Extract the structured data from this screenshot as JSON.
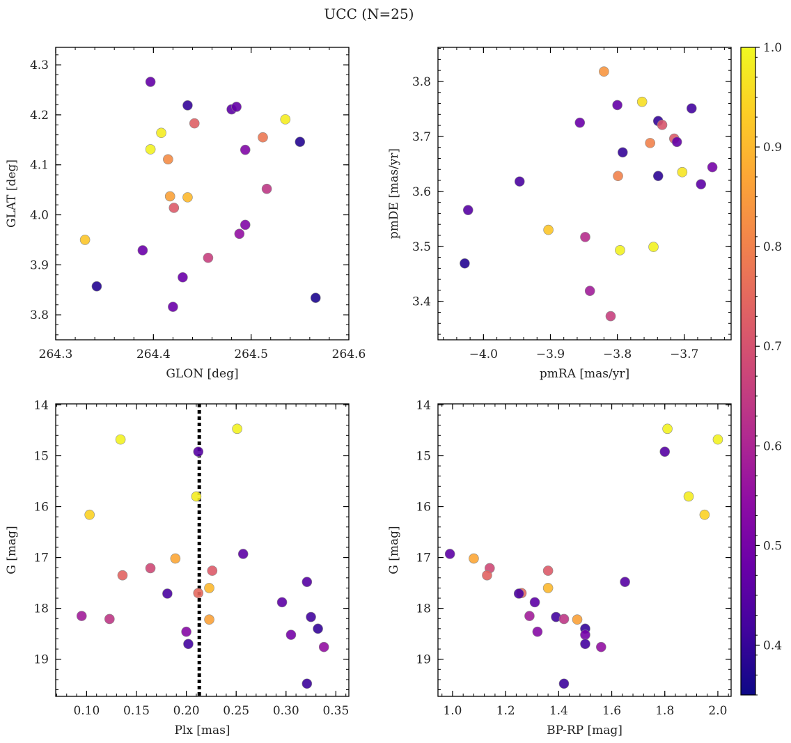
{
  "figure": {
    "title": "UCC (N=25)"
  },
  "colorbar": {
    "range": [
      0.35,
      1.0
    ],
    "ticks": [
      0.4,
      0.5,
      0.6,
      0.7,
      0.8,
      0.9,
      1.0
    ],
    "tick_labels": [
      "0.4",
      "0.5",
      "0.6",
      "0.7",
      "0.8",
      "0.9",
      "1.0"
    ],
    "colormap": "plasma"
  },
  "chart_data": [
    {
      "type": "scatter",
      "xlabel": "GLON [deg]",
      "ylabel": "GLAT [deg]",
      "xlim": [
        264.3,
        264.6
      ],
      "ylim": [
        3.75,
        4.335
      ],
      "xticks": [
        264.3,
        264.4,
        264.5,
        264.6
      ],
      "xtick_labels": [
        "264.3",
        "264.4",
        "264.5",
        "264.6"
      ],
      "yticks": [
        3.8,
        3.9,
        4.0,
        4.1,
        4.2,
        4.3
      ],
      "ytick_labels": [
        "3.8",
        "3.9",
        "4.0",
        "4.1",
        "4.2",
        "4.3"
      ],
      "points": [
        {
          "x": 264.397,
          "y": 4.266,
          "c": 0.47
        },
        {
          "x": 264.435,
          "y": 4.219,
          "c": 0.4
        },
        {
          "x": 264.48,
          "y": 4.211,
          "c": 0.46
        },
        {
          "x": 264.485,
          "y": 4.216,
          "c": 0.47
        },
        {
          "x": 264.535,
          "y": 4.191,
          "c": 0.98
        },
        {
          "x": 264.442,
          "y": 4.183,
          "c": 0.73
        },
        {
          "x": 264.408,
          "y": 4.164,
          "c": 0.98
        },
        {
          "x": 264.512,
          "y": 4.155,
          "c": 0.78
        },
        {
          "x": 264.55,
          "y": 4.146,
          "c": 0.38
        },
        {
          "x": 264.397,
          "y": 4.131,
          "c": 0.99
        },
        {
          "x": 264.494,
          "y": 4.13,
          "c": 0.52
        },
        {
          "x": 264.415,
          "y": 4.111,
          "c": 0.82
        },
        {
          "x": 264.516,
          "y": 4.052,
          "c": 0.64
        },
        {
          "x": 264.417,
          "y": 4.037,
          "c": 0.86
        },
        {
          "x": 264.435,
          "y": 4.035,
          "c": 0.9
        },
        {
          "x": 264.421,
          "y": 4.014,
          "c": 0.72
        },
        {
          "x": 264.494,
          "y": 3.98,
          "c": 0.52
        },
        {
          "x": 264.488,
          "y": 3.962,
          "c": 0.55
        },
        {
          "x": 264.33,
          "y": 3.95,
          "c": 0.92
        },
        {
          "x": 264.389,
          "y": 3.929,
          "c": 0.48
        },
        {
          "x": 264.456,
          "y": 3.914,
          "c": 0.66
        },
        {
          "x": 264.43,
          "y": 3.875,
          "c": 0.48
        },
        {
          "x": 264.342,
          "y": 3.857,
          "c": 0.38
        },
        {
          "x": 264.566,
          "y": 3.834,
          "c": 0.37
        },
        {
          "x": 264.42,
          "y": 3.816,
          "c": 0.48
        }
      ]
    },
    {
      "type": "scatter",
      "xlabel": "pmRA [mas/yr]",
      "ylabel": "pmDE [mas/yr]",
      "xlim": [
        -4.068,
        -3.63
      ],
      "ylim": [
        3.33,
        3.862
      ],
      "xticks": [
        -4.0,
        -3.9,
        -3.8,
        -3.7
      ],
      "xtick_labels": [
        "−4.0",
        "−3.9",
        "−3.8",
        "−3.7"
      ],
      "yticks": [
        3.4,
        3.5,
        3.6,
        3.7,
        3.8
      ],
      "ytick_labels": [
        "3.4",
        "3.5",
        "3.6",
        "3.7",
        "3.8"
      ],
      "points": [
        {
          "x": -3.82,
          "y": 3.818,
          "c": 0.84
        },
        {
          "x": -3.763,
          "y": 3.763,
          "c": 0.96
        },
        {
          "x": -3.8,
          "y": 3.757,
          "c": 0.47
        },
        {
          "x": -3.689,
          "y": 3.751,
          "c": 0.42
        },
        {
          "x": -3.739,
          "y": 3.728,
          "c": 0.4
        },
        {
          "x": -3.856,
          "y": 3.725,
          "c": 0.48
        },
        {
          "x": -3.733,
          "y": 3.721,
          "c": 0.71
        },
        {
          "x": -3.715,
          "y": 3.696,
          "c": 0.72
        },
        {
          "x": -3.751,
          "y": 3.688,
          "c": 0.8
        },
        {
          "x": -3.711,
          "y": 3.69,
          "c": 0.47
        },
        {
          "x": -3.792,
          "y": 3.671,
          "c": 0.4
        },
        {
          "x": -3.658,
          "y": 3.644,
          "c": 0.5
        },
        {
          "x": -3.703,
          "y": 3.635,
          "c": 0.97
        },
        {
          "x": -3.799,
          "y": 3.628,
          "c": 0.8
        },
        {
          "x": -3.739,
          "y": 3.628,
          "c": 0.39
        },
        {
          "x": -3.946,
          "y": 3.618,
          "c": 0.43
        },
        {
          "x": -3.675,
          "y": 3.613,
          "c": 0.46
        },
        {
          "x": -4.023,
          "y": 3.566,
          "c": 0.45
        },
        {
          "x": -3.903,
          "y": 3.53,
          "c": 0.92
        },
        {
          "x": -3.848,
          "y": 3.517,
          "c": 0.62
        },
        {
          "x": -3.746,
          "y": 3.499,
          "c": 0.99
        },
        {
          "x": -3.796,
          "y": 3.493,
          "c": 0.99
        },
        {
          "x": -4.028,
          "y": 3.469,
          "c": 0.38
        },
        {
          "x": -3.841,
          "y": 3.419,
          "c": 0.58
        },
        {
          "x": -3.81,
          "y": 3.373,
          "c": 0.66
        }
      ]
    },
    {
      "type": "scatter",
      "xlabel": "Plx [mas]",
      "ylabel": "G [mag]",
      "xlim": [
        0.069,
        0.363
      ],
      "ylim": [
        19.73,
        13.98
      ],
      "xticks": [
        0.1,
        0.15,
        0.2,
        0.25,
        0.3,
        0.35
      ],
      "xtick_labels": [
        "0.10",
        "0.15",
        "0.20",
        "0.25",
        "0.30",
        "0.35"
      ],
      "yticks": [
        14,
        15,
        16,
        17,
        18,
        19
      ],
      "ytick_labels": [
        "14",
        "15",
        "16",
        "17",
        "18",
        "19"
      ],
      "reference_line": {
        "x": 0.213,
        "style": "dotted"
      },
      "points": [
        {
          "x": 0.251,
          "y": 14.47,
          "c": 0.99
        },
        {
          "x": 0.134,
          "y": 14.68,
          "c": 0.99
        },
        {
          "x": 0.212,
          "y": 14.92,
          "c": 0.45
        },
        {
          "x": 0.21,
          "y": 15.8,
          "c": 0.98
        },
        {
          "x": 0.103,
          "y": 16.16,
          "c": 0.94
        },
        {
          "x": 0.257,
          "y": 16.93,
          "c": 0.46
        },
        {
          "x": 0.189,
          "y": 17.02,
          "c": 0.87
        },
        {
          "x": 0.164,
          "y": 17.21,
          "c": 0.68
        },
        {
          "x": 0.226,
          "y": 17.26,
          "c": 0.72
        },
        {
          "x": 0.136,
          "y": 17.35,
          "c": 0.74
        },
        {
          "x": 0.321,
          "y": 17.48,
          "c": 0.45
        },
        {
          "x": 0.223,
          "y": 17.6,
          "c": 0.9
        },
        {
          "x": 0.212,
          "y": 17.7,
          "c": 0.75
        },
        {
          "x": 0.181,
          "y": 17.71,
          "c": 0.43
        },
        {
          "x": 0.296,
          "y": 17.88,
          "c": 0.46
        },
        {
          "x": 0.095,
          "y": 18.15,
          "c": 0.58
        },
        {
          "x": 0.325,
          "y": 18.17,
          "c": 0.42
        },
        {
          "x": 0.123,
          "y": 18.21,
          "c": 0.64
        },
        {
          "x": 0.223,
          "y": 18.22,
          "c": 0.86
        },
        {
          "x": 0.332,
          "y": 18.4,
          "c": 0.4
        },
        {
          "x": 0.2,
          "y": 18.46,
          "c": 0.53
        },
        {
          "x": 0.305,
          "y": 18.52,
          "c": 0.5
        },
        {
          "x": 0.202,
          "y": 18.7,
          "c": 0.42
        },
        {
          "x": 0.338,
          "y": 18.76,
          "c": 0.55
        },
        {
          "x": 0.321,
          "y": 19.48,
          "c": 0.41
        }
      ]
    },
    {
      "type": "scatter",
      "xlabel": "BP-RP [mag]",
      "ylabel": "G [mag]",
      "xlim": [
        0.945,
        2.05
      ],
      "ylim": [
        19.73,
        13.98
      ],
      "xticks": [
        1.0,
        1.2,
        1.4,
        1.6,
        1.8,
        2.0
      ],
      "xtick_labels": [
        "1.0",
        "1.2",
        "1.4",
        "1.6",
        "1.8",
        "2.0"
      ],
      "yticks": [
        14,
        15,
        16,
        17,
        18,
        19
      ],
      "ytick_labels": [
        "14",
        "15",
        "16",
        "17",
        "18",
        "19"
      ],
      "points": [
        {
          "x": 1.81,
          "y": 14.47,
          "c": 0.99
        },
        {
          "x": 2.0,
          "y": 14.68,
          "c": 0.99
        },
        {
          "x": 1.8,
          "y": 14.92,
          "c": 0.45
        },
        {
          "x": 1.89,
          "y": 15.8,
          "c": 0.98
        },
        {
          "x": 1.95,
          "y": 16.16,
          "c": 0.94
        },
        {
          "x": 0.99,
          "y": 16.93,
          "c": 0.46
        },
        {
          "x": 1.08,
          "y": 17.02,
          "c": 0.87
        },
        {
          "x": 1.14,
          "y": 17.21,
          "c": 0.68
        },
        {
          "x": 1.36,
          "y": 17.26,
          "c": 0.72
        },
        {
          "x": 1.13,
          "y": 17.35,
          "c": 0.74
        },
        {
          "x": 1.65,
          "y": 17.48,
          "c": 0.45
        },
        {
          "x": 1.36,
          "y": 17.6,
          "c": 0.9
        },
        {
          "x": 1.26,
          "y": 17.7,
          "c": 0.75
        },
        {
          "x": 1.25,
          "y": 17.71,
          "c": 0.43
        },
        {
          "x": 1.31,
          "y": 17.88,
          "c": 0.46
        },
        {
          "x": 1.29,
          "y": 18.15,
          "c": 0.58
        },
        {
          "x": 1.39,
          "y": 18.17,
          "c": 0.42
        },
        {
          "x": 1.42,
          "y": 18.21,
          "c": 0.64
        },
        {
          "x": 1.47,
          "y": 18.22,
          "c": 0.86
        },
        {
          "x": 1.5,
          "y": 18.4,
          "c": 0.4
        },
        {
          "x": 1.32,
          "y": 18.46,
          "c": 0.53
        },
        {
          "x": 1.5,
          "y": 18.52,
          "c": 0.5
        },
        {
          "x": 1.5,
          "y": 18.7,
          "c": 0.42
        },
        {
          "x": 1.56,
          "y": 18.76,
          "c": 0.55
        },
        {
          "x": 1.42,
          "y": 19.48,
          "c": 0.41
        }
      ]
    }
  ]
}
